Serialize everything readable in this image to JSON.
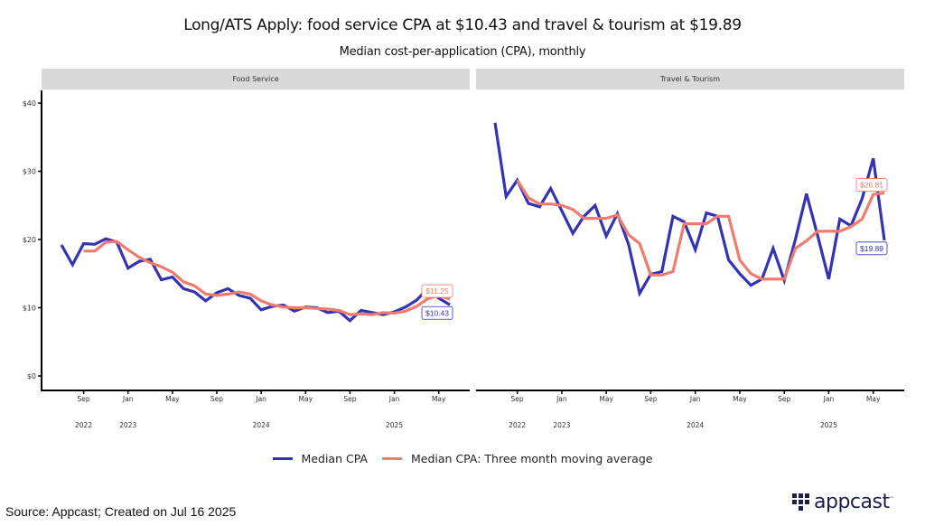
{
  "header": {
    "title": "Long/ATS Apply: food service CPA at $10.43 and travel & tourism at $19.89",
    "subtitle": "Median cost-per-application (CPA), monthly"
  },
  "legend": {
    "items": [
      {
        "label": "Median CPA",
        "color": "#3333b3"
      },
      {
        "label": "Median CPA: Three month moving average",
        "color": "#f07b6e"
      }
    ]
  },
  "footer": {
    "source": "Source: Appcast; Created on Jul 16 2025",
    "logo_text": "appcast",
    "logo_tm": "™"
  },
  "chart_data": [
    {
      "type": "line",
      "panel": "Food Service",
      "title": "Food Service",
      "xlabel": "",
      "ylabel": "",
      "ylim": [
        0,
        40
      ],
      "y_ticks": [
        "$0",
        "$10",
        "$20",
        "$30",
        "$40"
      ],
      "y_tick_values": [
        0,
        10,
        20,
        30,
        40
      ],
      "x_tick_labels": [
        "Sep",
        "Jan",
        "May",
        "Sep",
        "Jan",
        "May",
        "Sep",
        "Jan",
        "May"
      ],
      "x_tick_months": [
        "2022-09",
        "2023-01",
        "2023-05",
        "2023-09",
        "2024-01",
        "2024-05",
        "2024-09",
        "2025-01",
        "2025-05"
      ],
      "x_year_labels": [
        "2022",
        "2023",
        "2024",
        "2025"
      ],
      "x_year_months": [
        "2022-09",
        "2023-01",
        "2024-01",
        "2025-01"
      ],
      "x": [
        "2022-07",
        "2022-08",
        "2022-09",
        "2022-10",
        "2022-11",
        "2022-12",
        "2023-01",
        "2023-02",
        "2023-03",
        "2023-04",
        "2023-05",
        "2023-06",
        "2023-07",
        "2023-08",
        "2023-09",
        "2023-10",
        "2023-11",
        "2023-12",
        "2024-01",
        "2024-02",
        "2024-03",
        "2024-04",
        "2024-05",
        "2024-06",
        "2024-07",
        "2024-08",
        "2024-09",
        "2024-10",
        "2024-11",
        "2024-12",
        "2025-01",
        "2025-02",
        "2025-03",
        "2025-04",
        "2025-05",
        "2025-06"
      ],
      "series": [
        {
          "name": "Median CPA",
          "values": [
            19.2,
            16.3,
            19.4,
            19.3,
            20.1,
            19.6,
            15.8,
            16.8,
            17.1,
            14.1,
            14.5,
            12.8,
            12.3,
            11.0,
            12.2,
            12.8,
            11.8,
            11.4,
            9.7,
            10.2,
            10.4,
            9.5,
            10.1,
            10.0,
            9.3,
            9.5,
            8.1,
            9.6,
            9.3,
            9.0,
            9.4,
            10.1,
            11.1,
            12.8,
            11.4,
            10.43
          ]
        },
        {
          "name": "Median CPA: Three month moving average",
          "values": [
            null,
            null,
            18.3,
            18.3,
            19.6,
            19.7,
            18.5,
            17.4,
            16.6,
            16.0,
            15.2,
            13.8,
            13.2,
            12.0,
            11.8,
            12.0,
            12.3,
            12.0,
            11.0,
            10.4,
            10.1,
            10.0,
            10.0,
            9.9,
            9.8,
            9.6,
            9.0,
            9.1,
            9.0,
            9.3,
            9.2,
            9.5,
            10.2,
            11.3,
            11.8,
            11.25
          ]
        }
      ],
      "end_labels": [
        {
          "series": "Median CPA: Three month moving average",
          "text": "$11.25"
        },
        {
          "series": "Median CPA",
          "text": "$10.43"
        }
      ]
    },
    {
      "type": "line",
      "panel": "Travel & Tourism",
      "title": "Travel & Tourism",
      "xlabel": "",
      "ylabel": "",
      "ylim": [
        0,
        40
      ],
      "x_tick_labels": [
        "Sep",
        "Jan",
        "May",
        "Sep",
        "Jan",
        "May",
        "Sep",
        "Jan",
        "May"
      ],
      "x_tick_months": [
        "2022-09",
        "2023-01",
        "2023-05",
        "2023-09",
        "2024-01",
        "2024-05",
        "2024-09",
        "2025-01",
        "2025-05"
      ],
      "x_year_labels": [
        "2022",
        "2023",
        "2024",
        "2025"
      ],
      "x_year_months": [
        "2022-09",
        "2023-01",
        "2024-01",
        "2025-01"
      ],
      "x": [
        "2022-07",
        "2022-08",
        "2022-09",
        "2022-10",
        "2022-11",
        "2022-12",
        "2023-01",
        "2023-02",
        "2023-03",
        "2023-04",
        "2023-05",
        "2023-06",
        "2023-07",
        "2023-08",
        "2023-09",
        "2023-10",
        "2023-11",
        "2023-12",
        "2024-01",
        "2024-02",
        "2024-03",
        "2024-04",
        "2024-05",
        "2024-06",
        "2024-07",
        "2024-08",
        "2024-09",
        "2024-10",
        "2024-11",
        "2024-12",
        "2025-01",
        "2025-02",
        "2025-03",
        "2025-04",
        "2025-05",
        "2025-06"
      ],
      "series": [
        {
          "name": "Median CPA",
          "values": [
            37.1,
            26.3,
            28.7,
            25.3,
            24.8,
            27.5,
            24.2,
            20.9,
            23.4,
            25.0,
            20.5,
            23.8,
            19.3,
            12.1,
            14.9,
            15.3,
            23.4,
            22.6,
            18.5,
            23.9,
            23.4,
            17.0,
            15.0,
            13.3,
            14.2,
            18.7,
            14.0,
            20.0,
            26.7,
            20.6,
            14.2,
            23.0,
            22.0,
            26.0,
            31.9,
            19.89
          ]
        },
        {
          "name": "Median CPA: Three month moving average",
          "values": [
            null,
            null,
            28.7,
            26.1,
            25.2,
            25.2,
            25.0,
            24.4,
            23.1,
            23.1,
            23.1,
            23.6,
            20.7,
            19.4,
            14.8,
            14.8,
            15.3,
            22.3,
            22.3,
            22.3,
            23.4,
            23.4,
            17.0,
            15.0,
            14.2,
            14.2,
            14.2,
            18.7,
            19.8,
            21.2,
            21.2,
            21.2,
            21.9,
            23.0,
            26.6,
            26.81
          ]
        }
      ],
      "end_labels": [
        {
          "series": "Median CPA: Three month moving average",
          "text": "$26.81"
        },
        {
          "series": "Median CPA",
          "text": "$19.89"
        }
      ]
    }
  ]
}
